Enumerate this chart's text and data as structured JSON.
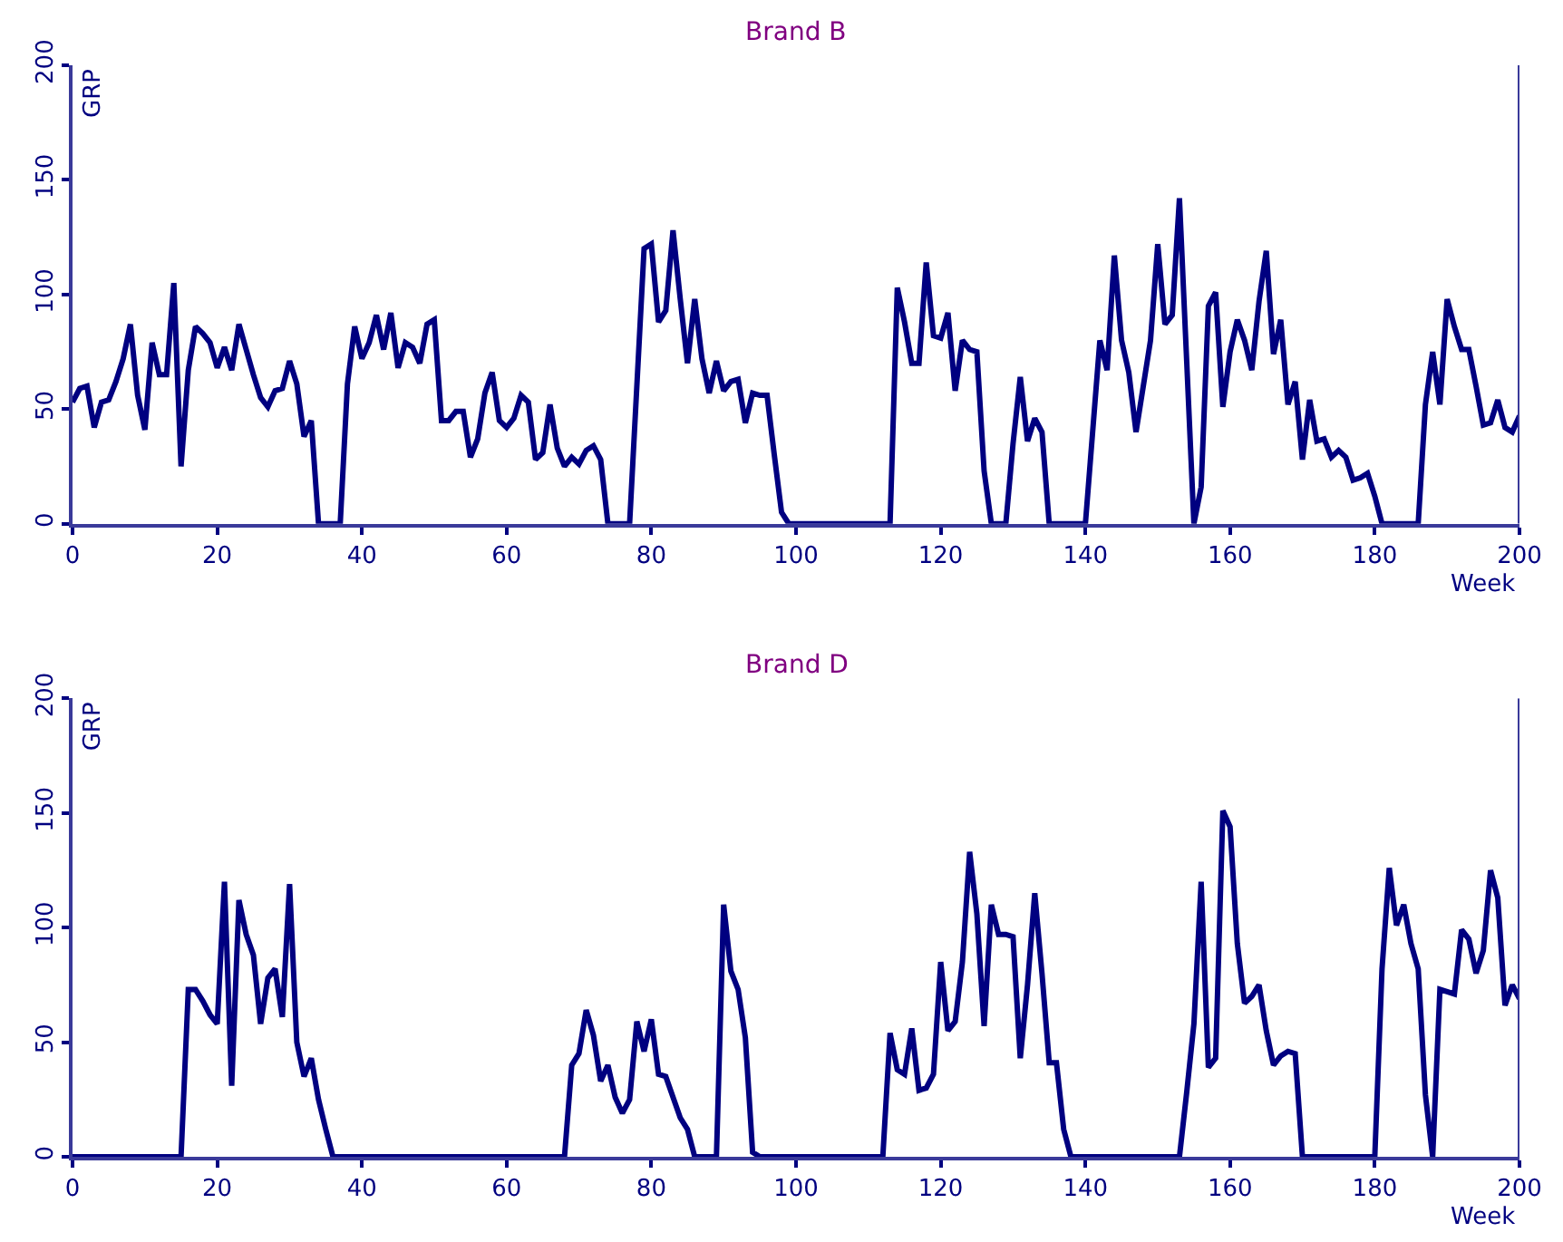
{
  "chart_data": [
    {
      "type": "line",
      "title": "Brand B",
      "xlabel": "Week",
      "ylabel": "GRP",
      "xlim": [
        0,
        200
      ],
      "ylim": [
        0,
        200
      ],
      "xticks": [
        0,
        20,
        40,
        60,
        80,
        100,
        120,
        140,
        160,
        180,
        200
      ],
      "yticks": [
        0,
        50,
        100,
        150,
        200
      ],
      "grid": false,
      "marker": "none",
      "line_style": "solid",
      "x": [
        0,
        1,
        2,
        3,
        4,
        5,
        6,
        7,
        8,
        9,
        10,
        11,
        12,
        13,
        14,
        15,
        16,
        17,
        18,
        19,
        20,
        21,
        22,
        23,
        24,
        25,
        26,
        27,
        28,
        29,
        30,
        31,
        32,
        33,
        34,
        35,
        36,
        37,
        38,
        39,
        40,
        41,
        42,
        43,
        44,
        45,
        46,
        47,
        48,
        49,
        50,
        51,
        52,
        53,
        54,
        55,
        56,
        57,
        58,
        59,
        60,
        61,
        62,
        63,
        64,
        65,
        66,
        67,
        68,
        69,
        70,
        71,
        72,
        73,
        74,
        75,
        76,
        77,
        78,
        79,
        80,
        81,
        82,
        83,
        84,
        85,
        86,
        87,
        88,
        89,
        90,
        91,
        92,
        93,
        94,
        95,
        96,
        97,
        98,
        99,
        100,
        101,
        102,
        103,
        104,
        105,
        106,
        107,
        108,
        109,
        110,
        111,
        112,
        113,
        114,
        115,
        116,
        117,
        118,
        119,
        120,
        121,
        122,
        123,
        124,
        125,
        126,
        127,
        128,
        129,
        130,
        131,
        132,
        133,
        134,
        135,
        136,
        137,
        138,
        139,
        140,
        141,
        142,
        143,
        144,
        145,
        146,
        147,
        148,
        149,
        150,
        151,
        152,
        153,
        154,
        155,
        156,
        157,
        158,
        159,
        160,
        161,
        162,
        163,
        164,
        165,
        166,
        167,
        168,
        169,
        170,
        171,
        172,
        173,
        174,
        175,
        176,
        177,
        178,
        179,
        180,
        181,
        182,
        183,
        184,
        185,
        186,
        187,
        188,
        189,
        190,
        191,
        192,
        193,
        194,
        195,
        196,
        197,
        198,
        199,
        200
      ],
      "series": [
        {
          "color": "#000080",
          "values": [
            53,
            59,
            60,
            42,
            53,
            54,
            62,
            72,
            87,
            56,
            41,
            79,
            65,
            65,
            105,
            25,
            67,
            86,
            83,
            79,
            68,
            77,
            67,
            87,
            76,
            65,
            55,
            51,
            58,
            59,
            71,
            61,
            38,
            45,
            0,
            0,
            0,
            0,
            61,
            86,
            72,
            79,
            91,
            76,
            92,
            68,
            79,
            77,
            70,
            87,
            89,
            45,
            45,
            49,
            49,
            29,
            37,
            57,
            66,
            45,
            42,
            46,
            56,
            53,
            28,
            31,
            52,
            33,
            25,
            29,
            26,
            32,
            34,
            28,
            0,
            0,
            0,
            0,
            60,
            120,
            122,
            88,
            93,
            128,
            98,
            70,
            98,
            72,
            57,
            71,
            58,
            62,
            63,
            44,
            57,
            56,
            56,
            30,
            5,
            0,
            0,
            0,
            0,
            0,
            0,
            0,
            0,
            0,
            0,
            0,
            0,
            0,
            0,
            0,
            103,
            88,
            70,
            70,
            114,
            82,
            81,
            92,
            58,
            80,
            76,
            75,
            23,
            0,
            0,
            0,
            35,
            64,
            36,
            46,
            40,
            0,
            0,
            0,
            0,
            0,
            0,
            40,
            80,
            67,
            117,
            80,
            66,
            40,
            60,
            80,
            122,
            87,
            91,
            142,
            71,
            0,
            16,
            95,
            101,
            51,
            75,
            89,
            80,
            67,
            97,
            119,
            74,
            89,
            52,
            62,
            28,
            54,
            36,
            37,
            29,
            32,
            29,
            19,
            20,
            22,
            12,
            0,
            0,
            0,
            0,
            0,
            0,
            52,
            75,
            52,
            98,
            86,
            76,
            76,
            60,
            43,
            44,
            54,
            42,
            40,
            47
          ]
        }
      ]
    },
    {
      "type": "line",
      "title": "Brand D",
      "xlabel": "Week",
      "ylabel": "GRP",
      "xlim": [
        0,
        200
      ],
      "ylim": [
        0,
        200
      ],
      "xticks": [
        0,
        20,
        40,
        60,
        80,
        100,
        120,
        140,
        160,
        180,
        200
      ],
      "yticks": [
        0,
        50,
        100,
        150,
        200
      ],
      "grid": false,
      "marker": "none",
      "line_style": "solid",
      "x": [
        0,
        1,
        2,
        3,
        4,
        5,
        6,
        7,
        8,
        9,
        10,
        11,
        12,
        13,
        14,
        15,
        16,
        17,
        18,
        19,
        20,
        21,
        22,
        23,
        24,
        25,
        26,
        27,
        28,
        29,
        30,
        31,
        32,
        33,
        34,
        35,
        36,
        37,
        38,
        39,
        40,
        41,
        42,
        43,
        44,
        45,
        46,
        47,
        48,
        49,
        50,
        51,
        52,
        53,
        54,
        55,
        56,
        57,
        58,
        59,
        60,
        61,
        62,
        63,
        64,
        65,
        66,
        67,
        68,
        69,
        70,
        71,
        72,
        73,
        74,
        75,
        76,
        77,
        78,
        79,
        80,
        81,
        82,
        83,
        84,
        85,
        86,
        87,
        88,
        89,
        90,
        91,
        92,
        93,
        94,
        95,
        96,
        97,
        98,
        99,
        100,
        101,
        102,
        103,
        104,
        105,
        106,
        107,
        108,
        109,
        110,
        111,
        112,
        113,
        114,
        115,
        116,
        117,
        118,
        119,
        120,
        121,
        122,
        123,
        124,
        125,
        126,
        127,
        128,
        129,
        130,
        131,
        132,
        133,
        134,
        135,
        136,
        137,
        138,
        139,
        140,
        141,
        142,
        143,
        144,
        145,
        146,
        147,
        148,
        149,
        150,
        151,
        152,
        153,
        154,
        155,
        156,
        157,
        158,
        159,
        160,
        161,
        162,
        163,
        164,
        165,
        166,
        167,
        168,
        169,
        170,
        171,
        172,
        173,
        174,
        175,
        176,
        177,
        178,
        179,
        180,
        181,
        182,
        183,
        184,
        185,
        186,
        187,
        188,
        189,
        190,
        191,
        192,
        193,
        194,
        195,
        196,
        197,
        198,
        199,
        200
      ],
      "series": [
        {
          "color": "#000080",
          "values": [
            0,
            0,
            0,
            0,
            0,
            0,
            0,
            0,
            0,
            0,
            0,
            0,
            0,
            0,
            0,
            0,
            73,
            73,
            68,
            62,
            58,
            120,
            31,
            112,
            97,
            88,
            58,
            78,
            82,
            61,
            119,
            50,
            35,
            43,
            25,
            12,
            0,
            0,
            0,
            0,
            0,
            0,
            0,
            0,
            0,
            0,
            0,
            0,
            0,
            0,
            0,
            0,
            0,
            0,
            0,
            0,
            0,
            0,
            0,
            0,
            0,
            0,
            0,
            0,
            0,
            0,
            0,
            0,
            0,
            40,
            45,
            64,
            53,
            33,
            40,
            26,
            19,
            25,
            59,
            46,
            60,
            36,
            35,
            26,
            17,
            12,
            0,
            0,
            0,
            0,
            110,
            81,
            73,
            52,
            2,
            0,
            0,
            0,
            0,
            0,
            0,
            0,
            0,
            0,
            0,
            0,
            0,
            0,
            0,
            0,
            0,
            0,
            0,
            54,
            38,
            36,
            56,
            29,
            30,
            36,
            85,
            55,
            59,
            85,
            133,
            106,
            57,
            110,
            97,
            97,
            96,
            43,
            75,
            115,
            80,
            41,
            41,
            12,
            0,
            0,
            0,
            0,
            0,
            0,
            0,
            0,
            0,
            0,
            0,
            0,
            0,
            0,
            0,
            0,
            28,
            58,
            120,
            39,
            43,
            151,
            144,
            93,
            67,
            70,
            75,
            55,
            40,
            44,
            46,
            45,
            0,
            0,
            0,
            0,
            0,
            0,
            0,
            0,
            0,
            0,
            0,
            82,
            126,
            101,
            110,
            93,
            82,
            27,
            0,
            73,
            72,
            71,
            99,
            95,
            80,
            90,
            125,
            113,
            66,
            75,
            69
          ]
        }
      ]
    }
  ]
}
